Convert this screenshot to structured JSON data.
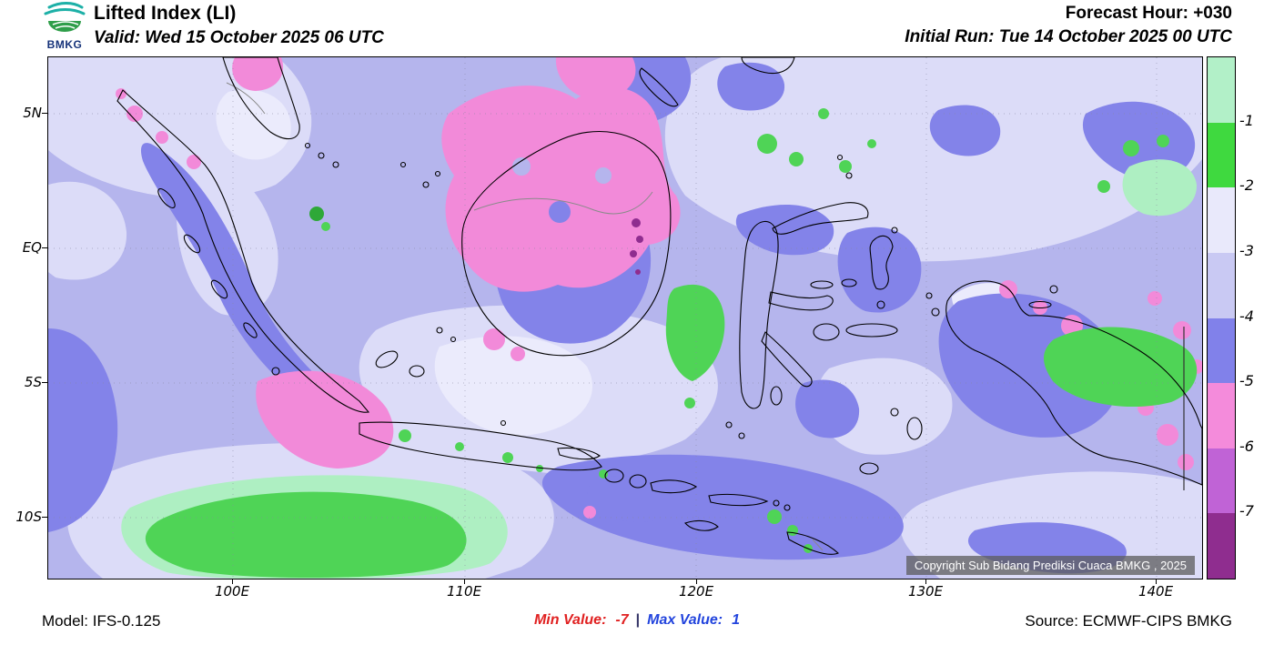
{
  "header": {
    "logo_text": "BMKG",
    "title": "Lifted Index (LI)",
    "valid": "Valid: Wed 15 October 2025 06 UTC",
    "forecast_hour": "Forecast Hour: +030",
    "initial_run": "Initial Run: Tue 14 October 2025 00 UTC"
  },
  "map": {
    "lat_labels": [
      "5N",
      "EQ",
      "5S",
      "10S"
    ],
    "lon_labels": [
      "100E",
      "110E",
      "120E",
      "130E",
      "140E"
    ],
    "copyright": "Copyright Sub Bidang Prediksi Cuaca BMKG , 2025"
  },
  "colorbar": {
    "tick_labels": [
      "-1",
      "-2",
      "-3",
      "-4",
      "-5",
      "-6",
      "-7"
    ],
    "segment_colors": [
      "#b2f0c8",
      "#3fd93f",
      "#e9e9fb",
      "#c9c9f3",
      "#8181ea",
      "#f48bdb",
      "#c063d6",
      "#8f2d8f"
    ]
  },
  "footer": {
    "model": "Model: IFS-0.125",
    "min_label": "Min Value:",
    "min_value": "-7",
    "separator": "|",
    "max_label": "Max Value:",
    "max_value": "1",
    "source": "Source: ECMWF-CIPS BMKG"
  }
}
